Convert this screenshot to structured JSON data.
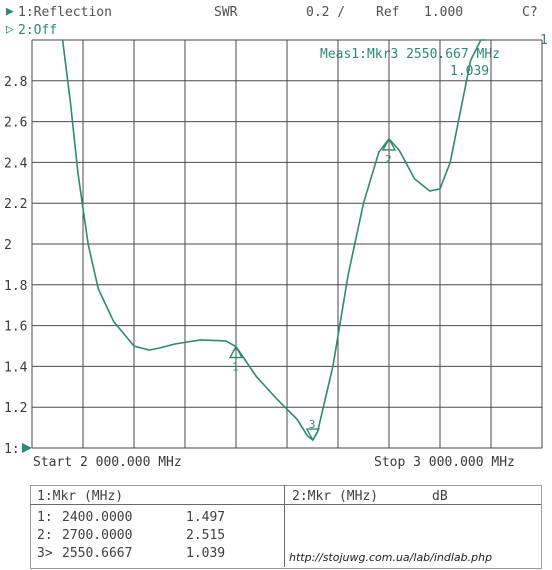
{
  "header": {
    "trace1": "1:Reflection",
    "format": "SWR",
    "scale": "0.2 /",
    "ref_label": "Ref",
    "ref_value": "1.000",
    "status": "C?",
    "trace2": "2:Off",
    "trace_marker_right": "1"
  },
  "marker_readout": {
    "line1": "Meas1:Mkr3 2550.667 MHz",
    "line2": "1.039"
  },
  "sweep": {
    "start": "Start 2 000.000 MHz",
    "stop": "Stop 3 000.000 MHz"
  },
  "table": {
    "left_header": "1:Mkr (MHz)",
    "right_header": "2:Mkr (MHz)",
    "right_unit": "dB",
    "rows": [
      {
        "id": "1:",
        "freq": "2400.0000",
        "value": "1.497"
      },
      {
        "id": "2:",
        "freq": "2700.0000",
        "value": "2.515"
      },
      {
        "id": "3>",
        "freq": "2550.6667",
        "value": "1.039"
      }
    ]
  },
  "watermark_url": "http://stojuwg.com.ua/lab/indlab.php",
  "colors": {
    "trace": "#2e8b6e",
    "grid": "#4a4a4a",
    "text": "#3a3a3a"
  },
  "chart_data": {
    "type": "line",
    "xlim": [
      2000,
      3000
    ],
    "ylim": [
      1.0,
      3.0
    ],
    "y_ticks": [
      "2.8",
      "2.6",
      "2.4",
      "2.2",
      "2",
      "1.8",
      "1.6",
      "1.4",
      "1.2",
      "1:"
    ],
    "x_divisions": 10,
    "series": [
      {
        "x": [
          2060,
          2075,
          2090,
          2110,
          2130,
          2160,
          2200,
          2230,
          2250,
          2280,
          2330,
          2380,
          2400,
          2440,
          2480,
          2520,
          2540,
          2550.67,
          2560,
          2590,
          2620,
          2650,
          2680,
          2700,
          2720,
          2750,
          2780,
          2800,
          2820,
          2840,
          2860,
          2880,
          2890
        ],
        "y": [
          3.0,
          2.7,
          2.35,
          2.0,
          1.78,
          1.62,
          1.5,
          1.48,
          1.49,
          1.51,
          1.53,
          1.525,
          1.497,
          1.35,
          1.24,
          1.14,
          1.06,
          1.039,
          1.08,
          1.4,
          1.85,
          2.2,
          2.45,
          2.515,
          2.46,
          2.32,
          2.26,
          2.27,
          2.4,
          2.65,
          2.9,
          3.0,
          3.0
        ]
      }
    ],
    "markers": [
      {
        "label": "1",
        "x": 2400,
        "y": 1.497
      },
      {
        "label": "2",
        "x": 2700,
        "y": 2.515
      },
      {
        "label": "3",
        "x": 2550.67,
        "y": 1.039
      }
    ]
  }
}
